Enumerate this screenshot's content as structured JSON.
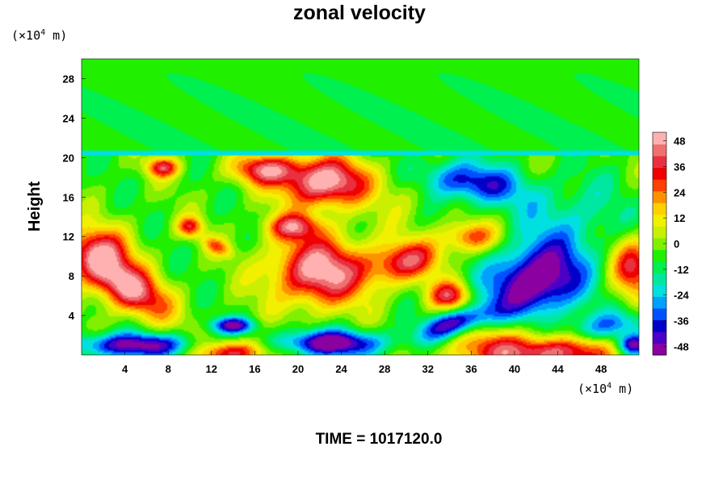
{
  "chart_data": {
    "type": "heatmap",
    "title": "zonal velocity",
    "ylabel": "Height",
    "x_unit": "(×10",
    "x_unit_exp": "4",
    "x_unit_tail": " m)",
    "y_unit": "(×10",
    "y_unit_exp": "4",
    "y_unit_tail": " m)",
    "footer": "TIME = 1017120.0",
    "xlim": [
      0,
      51.5
    ],
    "ylim": [
      0,
      30
    ],
    "x_ticks": [
      4,
      8,
      12,
      16,
      20,
      24,
      28,
      32,
      36,
      40,
      44,
      48
    ],
    "y_ticks": [
      4,
      8,
      12,
      16,
      20,
      24,
      28
    ],
    "colorbar": {
      "range": [
        -52,
        52
      ],
      "ticks": [
        48,
        36,
        24,
        12,
        0,
        -12,
        -24,
        -36,
        -48
      ],
      "colors": [
        "#8b00a0",
        "#4b00c8",
        "#0000c8",
        "#0050ff",
        "#00a0ff",
        "#00e0e0",
        "#00e8a0",
        "#00f050",
        "#20f000",
        "#80f000",
        "#c8f000",
        "#f0f000",
        "#ffd000",
        "#ff9000",
        "#ff4000",
        "#f00000",
        "#e83040",
        "#f07070",
        "#ffb0b0"
      ]
    },
    "background_level": -4,
    "features": [
      {
        "x": 4,
        "y": 7,
        "rx": 4.5,
        "ry": 2.2,
        "angle": -35,
        "amp": 55
      },
      {
        "x": 1.5,
        "y": 10.5,
        "rx": 3.0,
        "ry": 2.5,
        "angle": 0,
        "amp": 40
      },
      {
        "x": 22.5,
        "y": 17.5,
        "rx": 4.0,
        "ry": 2.5,
        "angle": 0,
        "amp": 58
      },
      {
        "x": 17,
        "y": 18.8,
        "rx": 3.0,
        "ry": 1.5,
        "angle": 0,
        "amp": 42
      },
      {
        "x": 7.5,
        "y": 19,
        "rx": 1.5,
        "ry": 1.0,
        "angle": 0,
        "amp": 40
      },
      {
        "x": 19.5,
        "y": 13,
        "rx": 2.5,
        "ry": 1.3,
        "angle": 0,
        "amp": 38
      },
      {
        "x": 22,
        "y": 8.5,
        "rx": 4.5,
        "ry": 3.5,
        "angle": 0,
        "amp": 55
      },
      {
        "x": 30,
        "y": 9.5,
        "rx": 3.5,
        "ry": 2.0,
        "angle": 15,
        "amp": 40
      },
      {
        "x": 34,
        "y": 6,
        "rx": 2.0,
        "ry": 1.5,
        "angle": 0,
        "amp": 40
      },
      {
        "x": 36,
        "y": 12,
        "rx": 2.5,
        "ry": 1.5,
        "angle": 0,
        "amp": 32
      },
      {
        "x": 10,
        "y": 13,
        "rx": 1.2,
        "ry": 1.0,
        "angle": 0,
        "amp": 35
      },
      {
        "x": 12.5,
        "y": 11,
        "rx": 1.5,
        "ry": 0.8,
        "angle": -30,
        "amp": 25
      },
      {
        "x": 51,
        "y": 9,
        "rx": 2.0,
        "ry": 3.0,
        "angle": 0,
        "amp": 40
      },
      {
        "x": 42,
        "y": 0.5,
        "rx": 7.0,
        "ry": 2.2,
        "angle": 0,
        "amp": 58
      },
      {
        "x": 14,
        "y": 0.3,
        "rx": 3.5,
        "ry": 1.3,
        "angle": 0,
        "amp": 45
      },
      {
        "x": 42,
        "y": 7.5,
        "rx": 4.5,
        "ry": 3.5,
        "angle": 25,
        "amp": -55
      },
      {
        "x": 34.5,
        "y": 3.2,
        "rx": 3.5,
        "ry": 1.3,
        "angle": 20,
        "amp": -45
      },
      {
        "x": 36,
        "y": 17.5,
        "rx": 4.5,
        "ry": 2.0,
        "angle": -10,
        "amp": -38
      },
      {
        "x": 47,
        "y": 2.5,
        "rx": 6.0,
        "ry": 1.5,
        "angle": 10,
        "amp": -30
      },
      {
        "x": 5,
        "y": 1.0,
        "rx": 6.0,
        "ry": 1.2,
        "angle": 0,
        "amp": -45
      },
      {
        "x": 23,
        "y": 1.2,
        "rx": 5.0,
        "ry": 1.3,
        "angle": 0,
        "amp": -50
      },
      {
        "x": 14,
        "y": 3.0,
        "rx": 2.0,
        "ry": 0.8,
        "angle": 0,
        "amp": -40
      },
      {
        "x": 51,
        "y": 1.0,
        "rx": 1.5,
        "ry": 1.0,
        "angle": 0,
        "amp": -45
      },
      {
        "x": 45,
        "y": 14,
        "rx": 5.0,
        "ry": 4.0,
        "angle": 0,
        "amp": -15
      },
      {
        "x": 30,
        "y": 16,
        "rx": 2.5,
        "ry": 3.0,
        "angle": 0,
        "amp": 8
      }
    ],
    "upper_layer": {
      "base": 20.2,
      "top": 30,
      "level": -8,
      "stripe": -20
    }
  }
}
